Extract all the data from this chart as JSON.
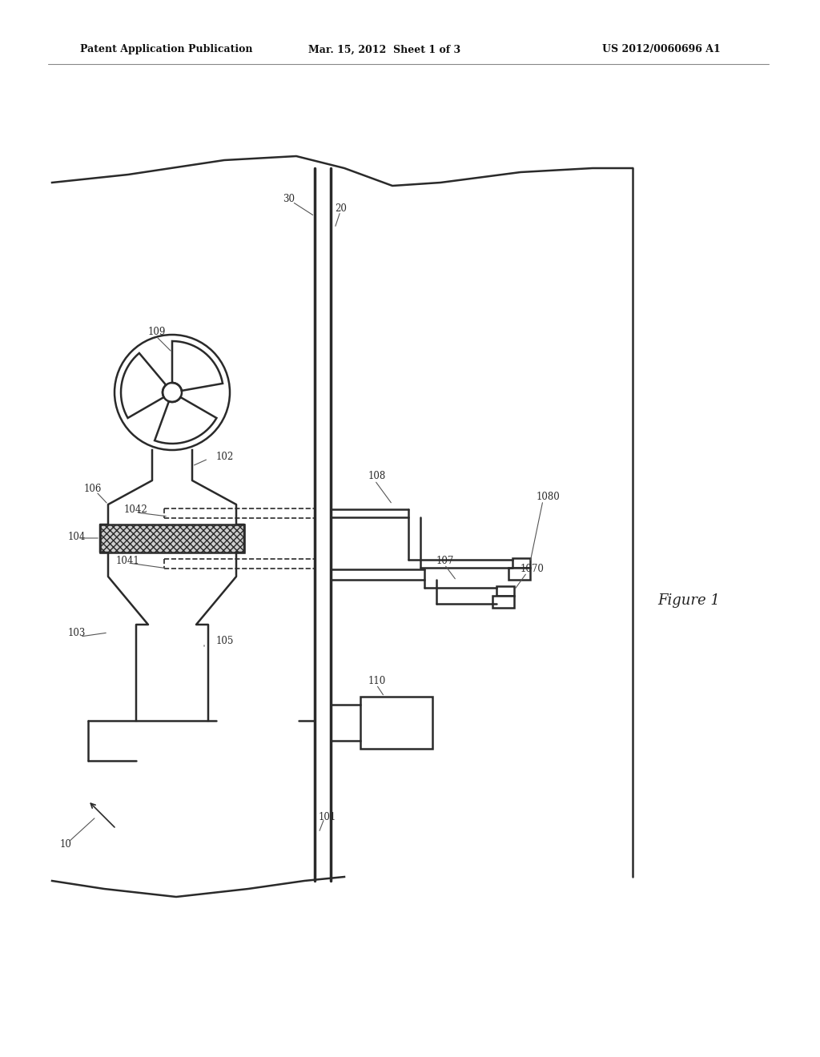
{
  "bg_color": "#ffffff",
  "line_color": "#2a2a2a",
  "header_left": "Patent Application Publication",
  "header_mid": "Mar. 15, 2012  Sheet 1 of 3",
  "header_right": "US 2012/0060696 A1",
  "figure_label": "Figure 1",
  "fig_width": 10.24,
  "fig_height": 13.2,
  "dpi": 100
}
